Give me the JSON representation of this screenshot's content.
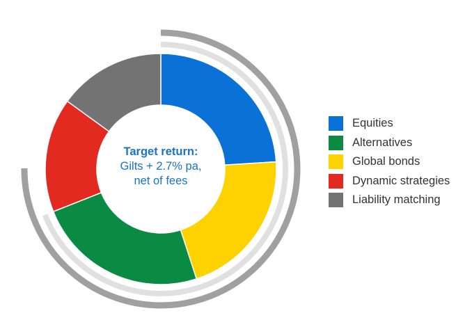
{
  "chart_data": {
    "type": "pie",
    "style": "donut",
    "categories": [
      "Equities",
      "Alternatives",
      "Global bonds",
      "Dynamic strategies",
      "Liability matching"
    ],
    "slice_order_clockwise_from_top": [
      "Equities",
      "Global bonds",
      "Alternatives",
      "Dynamic strategies",
      "Liability matching"
    ],
    "values": {
      "Equities": 24,
      "Global bonds": 21,
      "Alternatives": 24,
      "Dynamic strategies": 16,
      "Liability matching": 15
    },
    "colors": {
      "Equities": "#0a72d6",
      "Alternatives": "#0a8a43",
      "Global bonds": "#fdd200",
      "Dynamic strategies": "#e32a21",
      "Liability matching": "#737373"
    },
    "outer_arcs": [
      {
        "shade": "#e0e0e0",
        "span": "Equities to Alternatives"
      },
      {
        "shade": "#a0a0a0",
        "span": "Equities to Dynamic strategies"
      }
    ],
    "center_text": {
      "title": "Target return:",
      "line1": "Gilts + 2.7% pa,",
      "line2": "net of fees"
    },
    "legend": {
      "position": "right",
      "items": [
        {
          "label": "Equities",
          "color": "#0a72d6"
        },
        {
          "label": "Alternatives",
          "color": "#0a8a43"
        },
        {
          "label": "Global bonds",
          "color": "#fdd200"
        },
        {
          "label": "Dynamic strategies",
          "color": "#e32a21"
        },
        {
          "label": "Liability matching",
          "color": "#737373"
        }
      ]
    }
  }
}
